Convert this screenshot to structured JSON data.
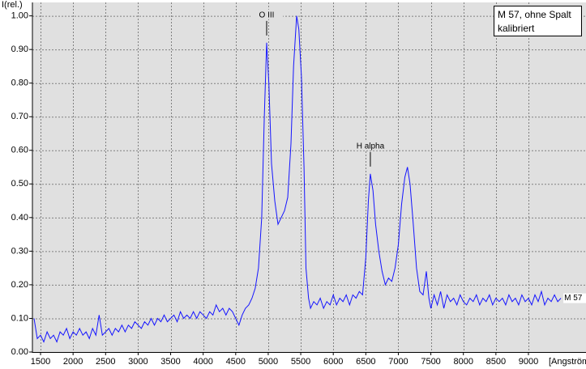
{
  "chart_data": {
    "type": "line",
    "y_label": "I(rel.)",
    "x_label": "[Angström",
    "legend_lines": [
      "M 57, ohne Spalt",
      "kalibriert"
    ],
    "annotations": [
      {
        "text": "O III",
        "x": 4976,
        "y": 0.92
      },
      {
        "text": "H alpha",
        "x": 6570,
        "y": 0.53
      }
    ],
    "xlim": [
      1375,
      9885
    ],
    "ylim": [
      0,
      1.04
    ],
    "xticks": [
      1500,
      2000,
      2500,
      3000,
      3500,
      4000,
      4500,
      5000,
      5500,
      6000,
      6500,
      7000,
      7500,
      8000,
      8500,
      9000
    ],
    "yticks": [
      {
        "value": 0,
        "label": "0.00"
      },
      {
        "value": 0.1,
        "label": "0.10"
      },
      {
        "value": 0.2,
        "label": "0.20"
      },
      {
        "value": 0.3,
        "label": "0.30"
      },
      {
        "value": 0.4,
        "label": "0.40"
      },
      {
        "value": 0.5,
        "label": "0.50"
      },
      {
        "value": 0.6,
        "label": "0.60"
      },
      {
        "value": 0.7,
        "label": "0.70"
      },
      {
        "value": 0.8,
        "label": "0.80"
      },
      {
        "value": 0.9,
        "label": "0.90"
      },
      {
        "value": 1,
        "label": "1.00"
      }
    ],
    "grid": true,
    "x": [
      1400,
      1450,
      1500,
      1550,
      1600,
      1650,
      1700,
      1750,
      1800,
      1850,
      1900,
      1950,
      2000,
      2050,
      2100,
      2150,
      2200,
      2250,
      2300,
      2350,
      2400,
      2450,
      2500,
      2550,
      2600,
      2650,
      2700,
      2750,
      2800,
      2850,
      2900,
      2950,
      3000,
      3050,
      3100,
      3150,
      3200,
      3250,
      3300,
      3350,
      3400,
      3450,
      3500,
      3550,
      3600,
      3650,
      3700,
      3750,
      3800,
      3850,
      3900,
      3950,
      4000,
      4050,
      4100,
      4150,
      4200,
      4250,
      4300,
      4350,
      4400,
      4450,
      4500,
      4550,
      4600,
      4650,
      4700,
      4750,
      4800,
      4850,
      4900,
      4940,
      4976,
      5010,
      5050,
      5100,
      5150,
      5200,
      5250,
      5300,
      5350,
      5390,
      5437,
      5470,
      5510,
      5550,
      5580,
      5620,
      5650,
      5700,
      5750,
      5800,
      5850,
      5900,
      5950,
      6000,
      6050,
      6100,
      6150,
      6200,
      6250,
      6300,
      6350,
      6400,
      6450,
      6500,
      6540,
      6570,
      6610,
      6650,
      6700,
      6750,
      6800,
      6850,
      6900,
      6950,
      7000,
      7050,
      7100,
      7140,
      7180,
      7230,
      7280,
      7330,
      7380,
      7430,
      7470,
      7500,
      7550,
      7600,
      7650,
      7700,
      7750,
      7800,
      7850,
      7900,
      7950,
      8000,
      8050,
      8100,
      8150,
      8200,
      8250,
      8300,
      8350,
      8400,
      8450,
      8500,
      8550,
      8600,
      8650,
      8700,
      8750,
      8800,
      8850,
      8900,
      8950,
      9000,
      9050,
      9100,
      9150,
      9200,
      9250,
      9300,
      9350,
      9400,
      9450,
      9500
    ],
    "series": [
      {
        "name": "M 57",
        "color": "#1414ff",
        "values": [
          0.1,
          0.04,
          0.05,
          0.03,
          0.06,
          0.04,
          0.05,
          0.03,
          0.06,
          0.05,
          0.07,
          0.04,
          0.06,
          0.05,
          0.07,
          0.05,
          0.06,
          0.04,
          0.07,
          0.05,
          0.11,
          0.05,
          0.06,
          0.07,
          0.05,
          0.07,
          0.06,
          0.08,
          0.06,
          0.08,
          0.07,
          0.09,
          0.08,
          0.07,
          0.09,
          0.08,
          0.1,
          0.08,
          0.1,
          0.09,
          0.11,
          0.09,
          0.1,
          0.11,
          0.09,
          0.12,
          0.1,
          0.11,
          0.1,
          0.12,
          0.1,
          0.12,
          0.11,
          0.1,
          0.12,
          0.11,
          0.14,
          0.12,
          0.13,
          0.11,
          0.13,
          0.12,
          0.1,
          0.08,
          0.11,
          0.13,
          0.14,
          0.16,
          0.19,
          0.25,
          0.4,
          0.7,
          0.92,
          0.8,
          0.56,
          0.45,
          0.38,
          0.4,
          0.42,
          0.46,
          0.62,
          0.85,
          1.0,
          0.96,
          0.82,
          0.55,
          0.25,
          0.16,
          0.13,
          0.15,
          0.14,
          0.16,
          0.13,
          0.15,
          0.14,
          0.17,
          0.14,
          0.16,
          0.15,
          0.17,
          0.14,
          0.17,
          0.16,
          0.18,
          0.17,
          0.28,
          0.45,
          0.53,
          0.48,
          0.38,
          0.3,
          0.24,
          0.2,
          0.22,
          0.21,
          0.25,
          0.32,
          0.44,
          0.52,
          0.55,
          0.5,
          0.38,
          0.25,
          0.18,
          0.17,
          0.24,
          0.16,
          0.13,
          0.17,
          0.14,
          0.18,
          0.13,
          0.17,
          0.15,
          0.16,
          0.14,
          0.17,
          0.15,
          0.14,
          0.16,
          0.15,
          0.17,
          0.14,
          0.16,
          0.15,
          0.17,
          0.14,
          0.16,
          0.15,
          0.16,
          0.14,
          0.17,
          0.15,
          0.16,
          0.14,
          0.17,
          0.15,
          0.16,
          0.14,
          0.17,
          0.15,
          0.18,
          0.14,
          0.16,
          0.15,
          0.17,
          0.15,
          0.16
        ]
      }
    ]
  }
}
